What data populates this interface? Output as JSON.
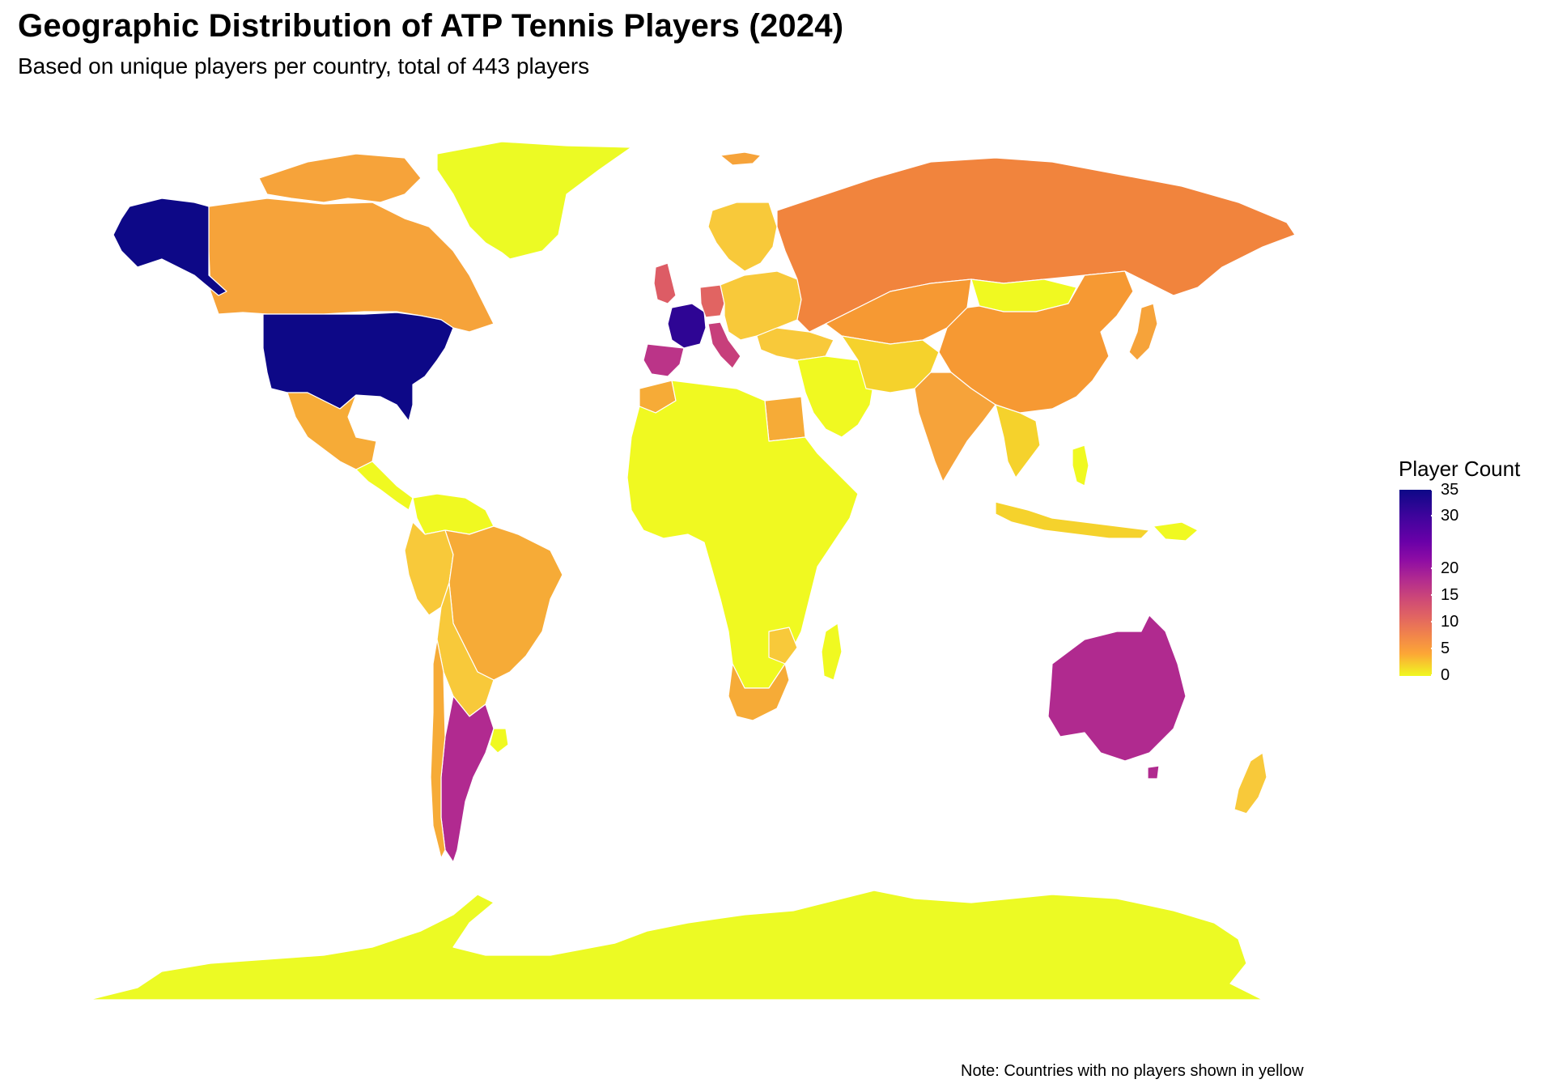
{
  "title": "Geographic Distribution of ATP Tennis Players (2024)",
  "subtitle": "Based on unique players per country, total of 443 players",
  "note": "Note: Countries with no players shown in yellow",
  "legend": {
    "title": "Player Count",
    "ticks": [
      "35",
      "30",
      "20",
      "15",
      "10",
      "5",
      "0"
    ],
    "tick_values": [
      35,
      30,
      20,
      15,
      10,
      5,
      0
    ]
  },
  "colors": {
    "count_35": "#0d0887",
    "count_30": "#3e049c",
    "count_20": "#b12a90",
    "count_15": "#cc4778",
    "count_10": "#f1844b",
    "count_5": "#fca636",
    "count_0": "#f0f921",
    "border": "#ffffff"
  }
}
